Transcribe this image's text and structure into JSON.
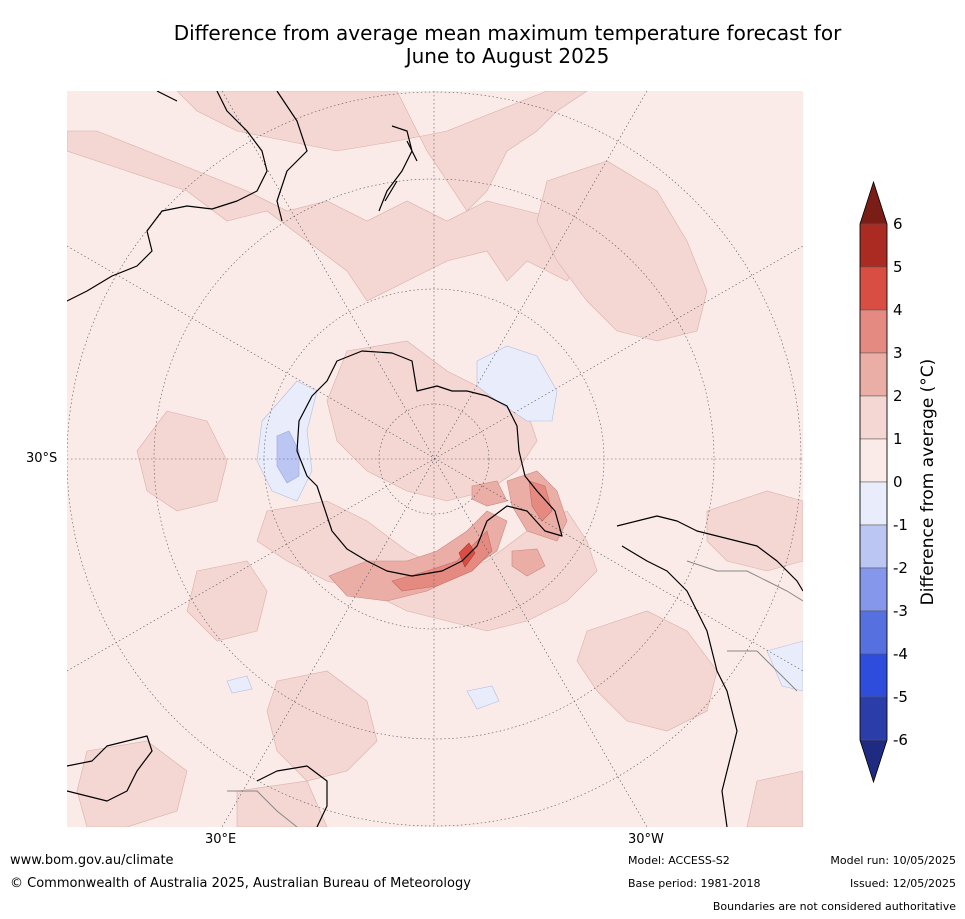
{
  "title_line1": "Difference from average mean maximum temperature forecast for",
  "title_line2": "June to August 2025",
  "map": {
    "graticule_labels": {
      "lat_30s": "30°S",
      "lon_30e": "30°E",
      "lon_30w": "30°W"
    },
    "colors": {
      "ocean_bg": "#fbebe8",
      "band_1_2": "#f4d6d2",
      "band_2_3": "#ebaea6",
      "band_3_4": "#e58a80",
      "band_4_5": "#d84e43",
      "band_neg1_0": "#e8ecfb",
      "band_neg2_neg1": "#bcc6f2",
      "coastline": "#000000",
      "boundary": "#888888"
    }
  },
  "colorbar": {
    "title": "Difference from average (°C)",
    "ticks": [
      "6",
      "5",
      "4",
      "3",
      "2",
      "1",
      "0",
      "-1",
      "-2",
      "-3",
      "-4",
      "-5",
      "-6"
    ],
    "bands": [
      {
        "from": 6,
        "to": 99,
        "color": "#7a1d16"
      },
      {
        "from": 5,
        "to": 6,
        "color": "#ab2b23"
      },
      {
        "from": 4,
        "to": 5,
        "color": "#d84e43"
      },
      {
        "from": 3,
        "to": 4,
        "color": "#e58a80"
      },
      {
        "from": 2,
        "to": 3,
        "color": "#ebaea6"
      },
      {
        "from": 1,
        "to": 2,
        "color": "#f4d6d2"
      },
      {
        "from": 0,
        "to": 1,
        "color": "#fbebe8"
      },
      {
        "from": -1,
        "to": 0,
        "color": "#e8ecfb"
      },
      {
        "from": -2,
        "to": -1,
        "color": "#bcc6f2"
      },
      {
        "from": -3,
        "to": -2,
        "color": "#8597eb"
      },
      {
        "from": -4,
        "to": -3,
        "color": "#5670e0"
      },
      {
        "from": -5,
        "to": -4,
        "color": "#2e4ddc"
      },
      {
        "from": -6,
        "to": -5,
        "color": "#2a3da8"
      },
      {
        "from": -99,
        "to": -6,
        "color": "#1f2b80"
      }
    ]
  },
  "footer": {
    "website": "www.bom.gov.au/climate",
    "copyright": "© Commonwealth of Australia 2025, Australian Bureau of Meteorology",
    "model": "Model: ACCESS-S2",
    "base_period": "Base period: 1981-2018",
    "model_run": "Model run: 10/05/2025",
    "issued": "Issued: 12/05/2025",
    "disclaimer": "Boundaries are not considered authoritative"
  }
}
